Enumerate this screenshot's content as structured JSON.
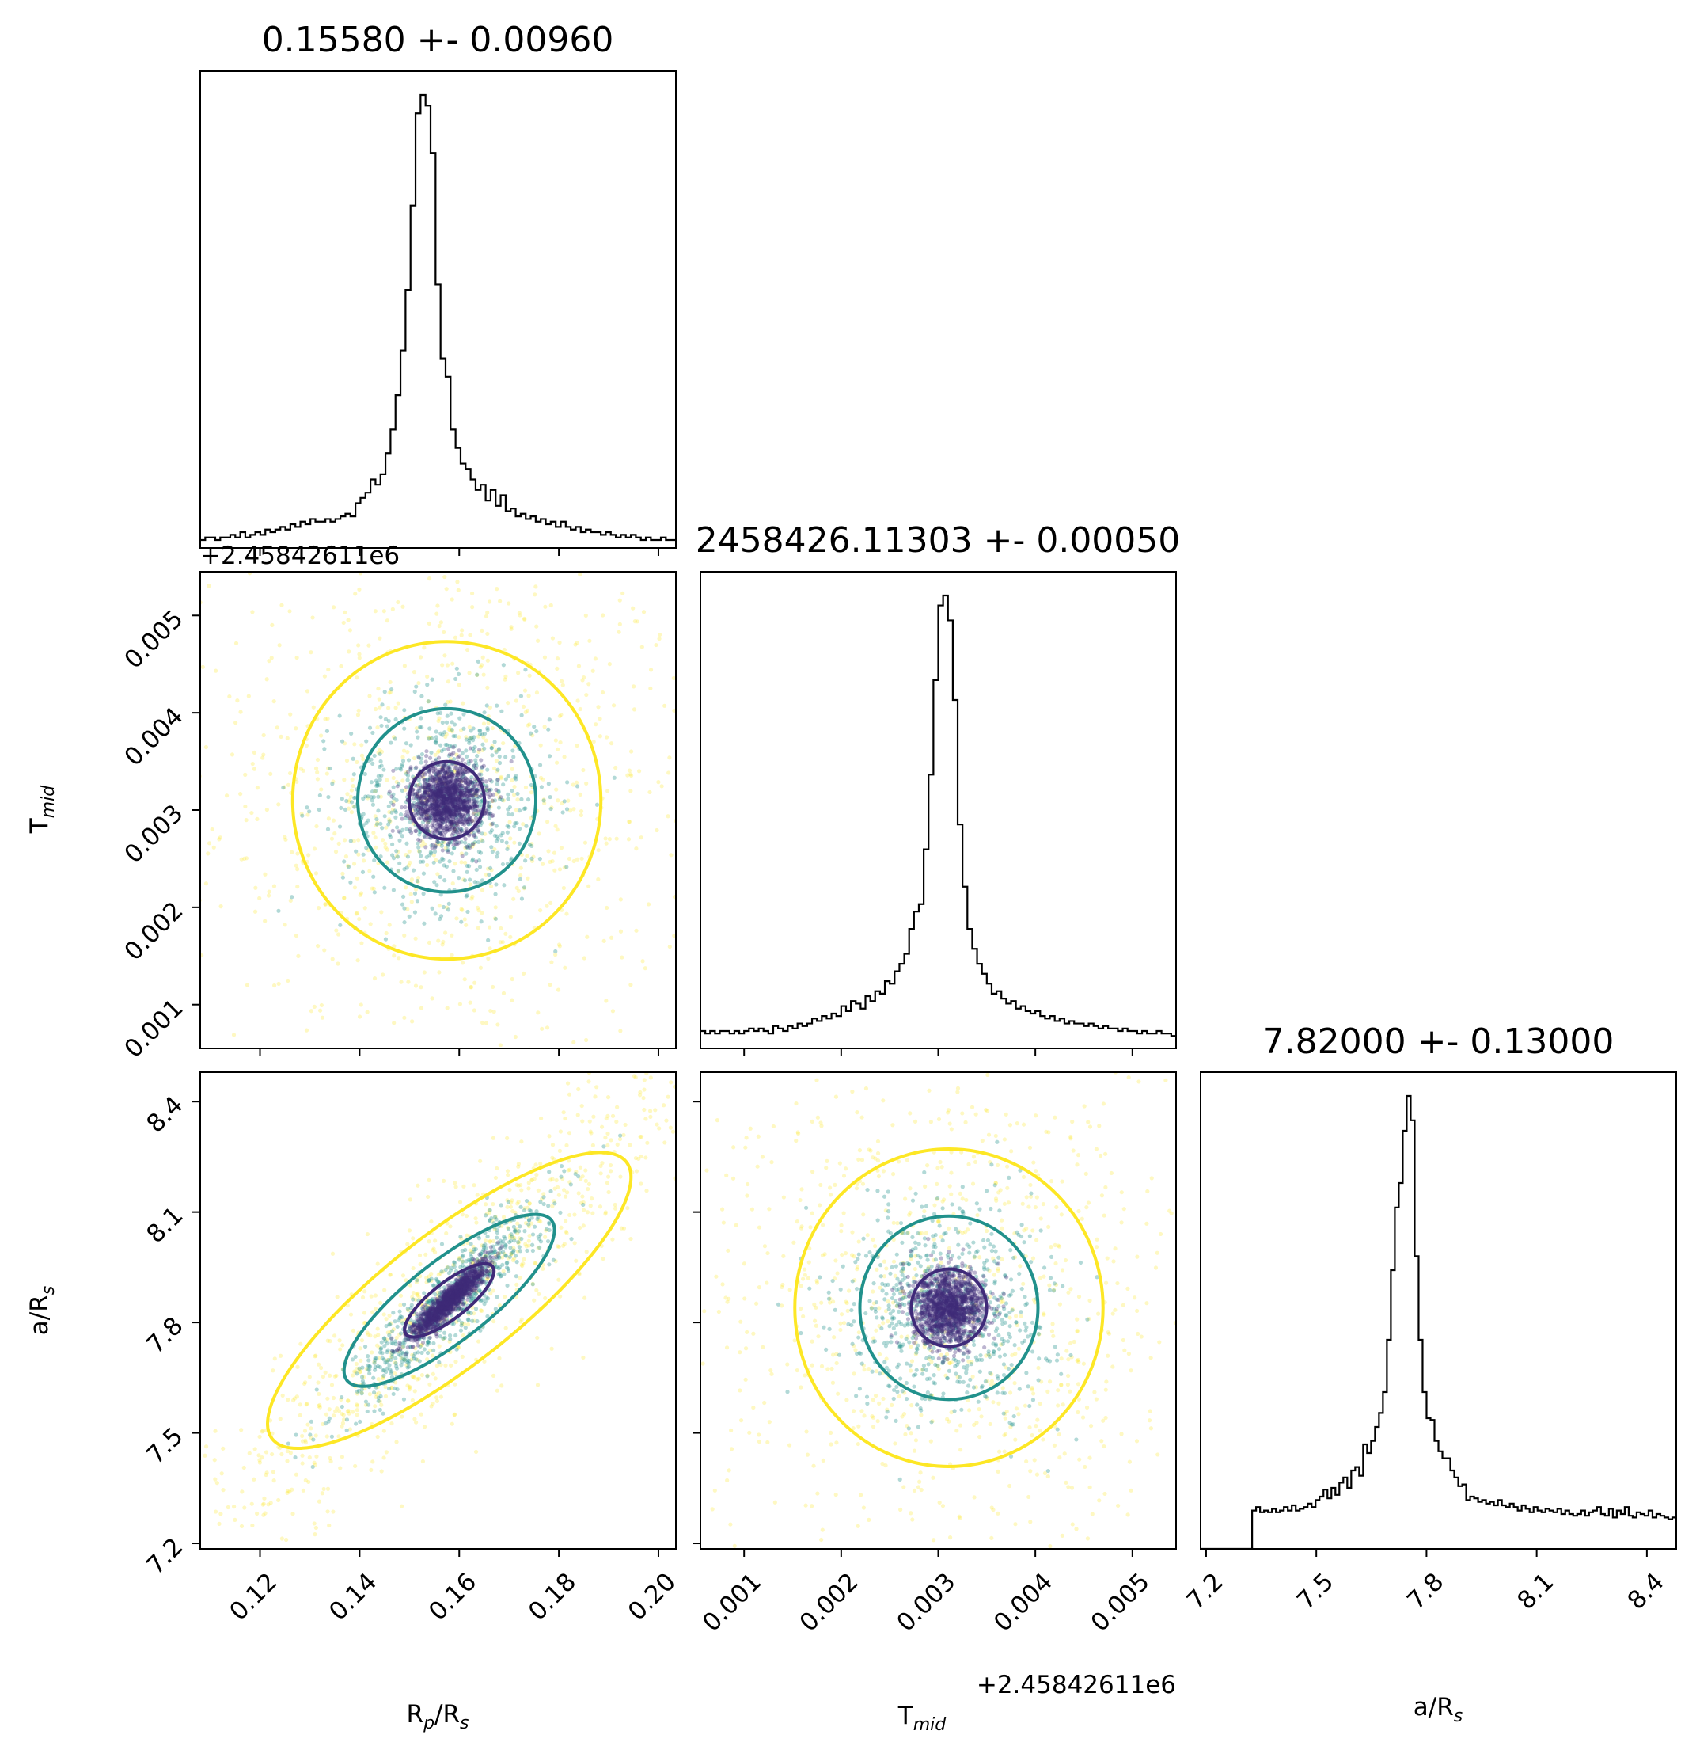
{
  "chart_data": {
    "type": "corner",
    "parameters": [
      {
        "key": "rprs",
        "label_main": "R",
        "label_sub": "p",
        "label_tail": "/R",
        "label_tail_sub": "s",
        "range": [
          0.108,
          0.2035
        ],
        "ticks": [
          0.12,
          0.14,
          0.16,
          0.18,
          0.2
        ],
        "tick_labels": [
          "0.12",
          "0.14",
          "0.16",
          "0.18",
          "0.20"
        ],
        "title": "0.15580 +- 0.00960",
        "median": 0.1558,
        "sigma": 0.0096
      },
      {
        "key": "tmid",
        "label_main": "T",
        "label_sub": "mid",
        "range": [
          0.00055,
          0.00545
        ],
        "ticks": [
          0.001,
          0.002,
          0.003,
          0.004,
          0.005
        ],
        "tick_labels": [
          "0.001",
          "0.002",
          "0.003",
          "0.004",
          "0.005"
        ],
        "offset_text": "+2.45842611e6",
        "title": "2458426.11303 +- 0.00050",
        "median": 0.00303,
        "sigma": 0.0005
      },
      {
        "key": "ars",
        "label_main": "a/R",
        "label_sub": "s",
        "range": [
          7.185,
          8.48
        ],
        "ticks": [
          7.2,
          7.5,
          7.8,
          8.1,
          8.4
        ],
        "tick_labels": [
          "7.2",
          "7.5",
          "7.8",
          "8.1",
          "8.4"
        ],
        "title": "7.82000 +- 0.13000",
        "median": 7.82,
        "sigma": 0.13
      }
    ],
    "histograms": [
      {
        "param": "rprs",
        "bins": 95,
        "counts": [
          3,
          4,
          4,
          3,
          4,
          4,
          5,
          4,
          6,
          4,
          5,
          6,
          5,
          7,
          6,
          7,
          8,
          7,
          9,
          8,
          10,
          9,
          11,
          10,
          10,
          11,
          10,
          11,
          12,
          13,
          12,
          17,
          19,
          21,
          26,
          24,
          28,
          36,
          45,
          58,
          75,
          98,
          130,
          165,
          172,
          168,
          150,
          100,
          72,
          65,
          45,
          38,
          32,
          30,
          26,
          22,
          24,
          18,
          22,
          16,
          20,
          14,
          15,
          12,
          13,
          11,
          12,
          10,
          11,
          9,
          10,
          8,
          10,
          8,
          7,
          8,
          6,
          7,
          6,
          6,
          5,
          6,
          5,
          4,
          5,
          4,
          5,
          4,
          3,
          4,
          3,
          3,
          4,
          3,
          3
        ]
      },
      {
        "param": "tmid",
        "bins": 98,
        "counts": [
          7,
          6,
          7,
          6,
          7,
          7,
          6,
          7,
          6,
          7,
          8,
          7,
          8,
          7,
          6,
          9,
          8,
          7,
          9,
          8,
          10,
          9,
          10,
          12,
          11,
          13,
          12,
          14,
          13,
          17,
          15,
          19,
          18,
          16,
          21,
          19,
          23,
          22,
          27,
          26,
          31,
          34,
          38,
          48,
          55,
          58,
          80,
          110,
          148,
          178,
          182,
          172,
          140,
          90,
          65,
          48,
          40,
          34,
          30,
          26,
          22,
          23,
          20,
          18,
          19,
          16,
          17,
          15,
          14,
          15,
          13,
          12,
          13,
          11,
          12,
          10,
          11,
          10,
          10,
          9,
          10,
          9,
          8,
          9,
          8,
          8,
          7,
          8,
          7,
          7,
          6,
          7,
          6,
          6,
          7,
          6,
          6,
          5
        ]
      },
      {
        "param": "ars",
        "bins": 120,
        "counts": [
          0,
          0,
          0,
          0,
          0,
          0,
          0,
          0,
          0,
          0,
          0,
          0,
          0,
          22,
          24,
          21,
          22,
          21,
          23,
          21,
          22,
          24,
          22,
          25,
          22,
          23,
          24,
          26,
          24,
          28,
          30,
          34,
          29,
          35,
          31,
          38,
          41,
          35,
          45,
          47,
          42,
          60,
          55,
          62,
          70,
          78,
          90,
          120,
          160,
          196,
          210,
          240,
          260,
          246,
          168,
          120,
          90,
          75,
          74,
          62,
          56,
          52,
          52,
          45,
          41,
          36,
          37,
          28,
          30,
          29,
          27,
          28,
          26,
          27,
          25,
          28,
          25,
          24,
          26,
          24,
          22,
          25,
          23,
          21,
          24,
          22,
          21,
          23,
          22,
          21,
          23,
          20,
          22,
          20,
          19,
          20,
          22,
          19,
          21,
          22,
          24,
          20,
          19,
          23,
          18,
          22,
          20,
          24,
          19,
          18,
          21,
          20,
          19,
          22,
          18,
          20,
          19,
          18,
          17,
          18
        ]
      }
    ],
    "scatter_pairs": [
      {
        "x": "rprs",
        "y": "tmid",
        "correlation": 0.0,
        "x_center": 0.1575,
        "y_center": 0.0031
      },
      {
        "x": "rprs",
        "y": "ars",
        "correlation": 0.92,
        "x_center": 0.158,
        "y_center": 7.86
      },
      {
        "x": "tmid",
        "y": "ars",
        "correlation": 0.0,
        "x_center": 0.00311,
        "y_center": 7.84
      }
    ],
    "contour_levels": [
      "1 sigma",
      "2 sigma",
      "3 sigma"
    ],
    "colors": {
      "sigma1": "#3f2a79",
      "sigma2": "#21918c",
      "sigma3": "#fde725",
      "hist_line": "#000000"
    }
  }
}
